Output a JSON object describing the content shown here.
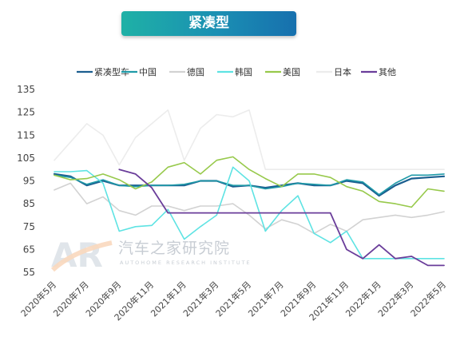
{
  "title": "紧凑型",
  "watermark": {
    "name": "汽车之家研究院",
    "en": "AUTOHOME RESEARCH INSTITUTE",
    "logo_text": "AR"
  },
  "chart_data": {
    "type": "line",
    "title": "紧凑型",
    "xlabel": "",
    "ylabel": "",
    "ylim": [
      55,
      135
    ],
    "yticks": [
      55,
      65,
      75,
      85,
      95,
      105,
      115,
      125,
      135
    ],
    "grid": false,
    "legend": "top",
    "x": [
      "2020年5月",
      "2020年6月",
      "2020年7月",
      "2020年8月",
      "2020年9月",
      "2020年10月",
      "2020年11月",
      "2020年12月",
      "2021年1月",
      "2021年2月",
      "2021年3月",
      "2021年4月",
      "2021年5月",
      "2021年6月",
      "2021年7月",
      "2021年8月",
      "2021年9月",
      "2021年10月",
      "2021年11月",
      "2021年12月",
      "2022年1月",
      "2022年2月",
      "2022年3月",
      "2022年4月",
      "2022年5月"
    ],
    "xtick_labels": [
      "2020年5月",
      "",
      "2020年7月",
      "",
      "2020年9月",
      "",
      "2020年11月",
      "",
      "2021年1月",
      "",
      "2021年3月",
      "",
      "2021年5月",
      "",
      "2021年7月",
      "",
      "2021年9月",
      "",
      "2021年11月",
      "",
      "2022年1月",
      "",
      "2022年3月",
      "",
      "2022年5月"
    ],
    "series": [
      {
        "name": "紧凑型车",
        "color": "#1b5e8f",
        "width": 2.2,
        "values": [
          98,
          97,
          93,
          95,
          93,
          93,
          93,
          93,
          93,
          95,
          95,
          92.5,
          93,
          92,
          93,
          94,
          93,
          93,
          95,
          94,
          88.5,
          93,
          96,
          96.5,
          97
        ]
      },
      {
        "name": "中国",
        "color": "#1f9aa8",
        "width": 1.6,
        "values": [
          97.5,
          96.5,
          93.5,
          95.5,
          93,
          92.5,
          93,
          93,
          93.5,
          95,
          95,
          93,
          93,
          91.5,
          92.5,
          94,
          93.5,
          93,
          95.5,
          94.5,
          89,
          94,
          97.5,
          97.5,
          98
        ]
      },
      {
        "name": "德国",
        "color": "#d2d2d2",
        "width": 1.6,
        "values": [
          91,
          94,
          85,
          88,
          82,
          80,
          84,
          84,
          82,
          84,
          84,
          85,
          80,
          74,
          78,
          76,
          72,
          76,
          73,
          78,
          79,
          80,
          79,
          80,
          81.5
        ]
      },
      {
        "name": "韩国",
        "color": "#5ee3e3",
        "width": 1.6,
        "values": [
          99,
          99,
          99.5,
          94,
          73,
          75,
          75.5,
          82.5,
          69.5,
          75,
          80,
          101,
          95,
          73,
          82,
          88.5,
          72,
          68,
          73,
          61,
          61,
          61,
          61,
          61,
          61
        ]
      },
      {
        "name": "美国",
        "color": "#97c94b",
        "width": 1.6,
        "values": [
          97.5,
          95.5,
          96,
          98,
          95.5,
          91.5,
          94.5,
          101,
          103,
          98,
          104,
          105.5,
          100,
          96,
          92.5,
          98,
          98,
          96.5,
          92.5,
          90.5,
          86,
          85,
          83.5,
          91.5,
          90.5
        ]
      },
      {
        "name": "日本",
        "color": "#ececec",
        "width": 1.6,
        "values": [
          104,
          112,
          120,
          115,
          102,
          114,
          120,
          126,
          104,
          118,
          124,
          123,
          126,
          100,
          100,
          100,
          100,
          100,
          100,
          100,
          100,
          100,
          100,
          100,
          100
        ]
      },
      {
        "name": "其他",
        "color": "#6a3d9a",
        "width": 1.8,
        "start_index": 4,
        "values": [
          null,
          null,
          null,
          null,
          100,
          98,
          92,
          81,
          81,
          81,
          81,
          81,
          81,
          81,
          81,
          81,
          81,
          81,
          65,
          61,
          67,
          61,
          62,
          58,
          58
        ]
      }
    ]
  }
}
